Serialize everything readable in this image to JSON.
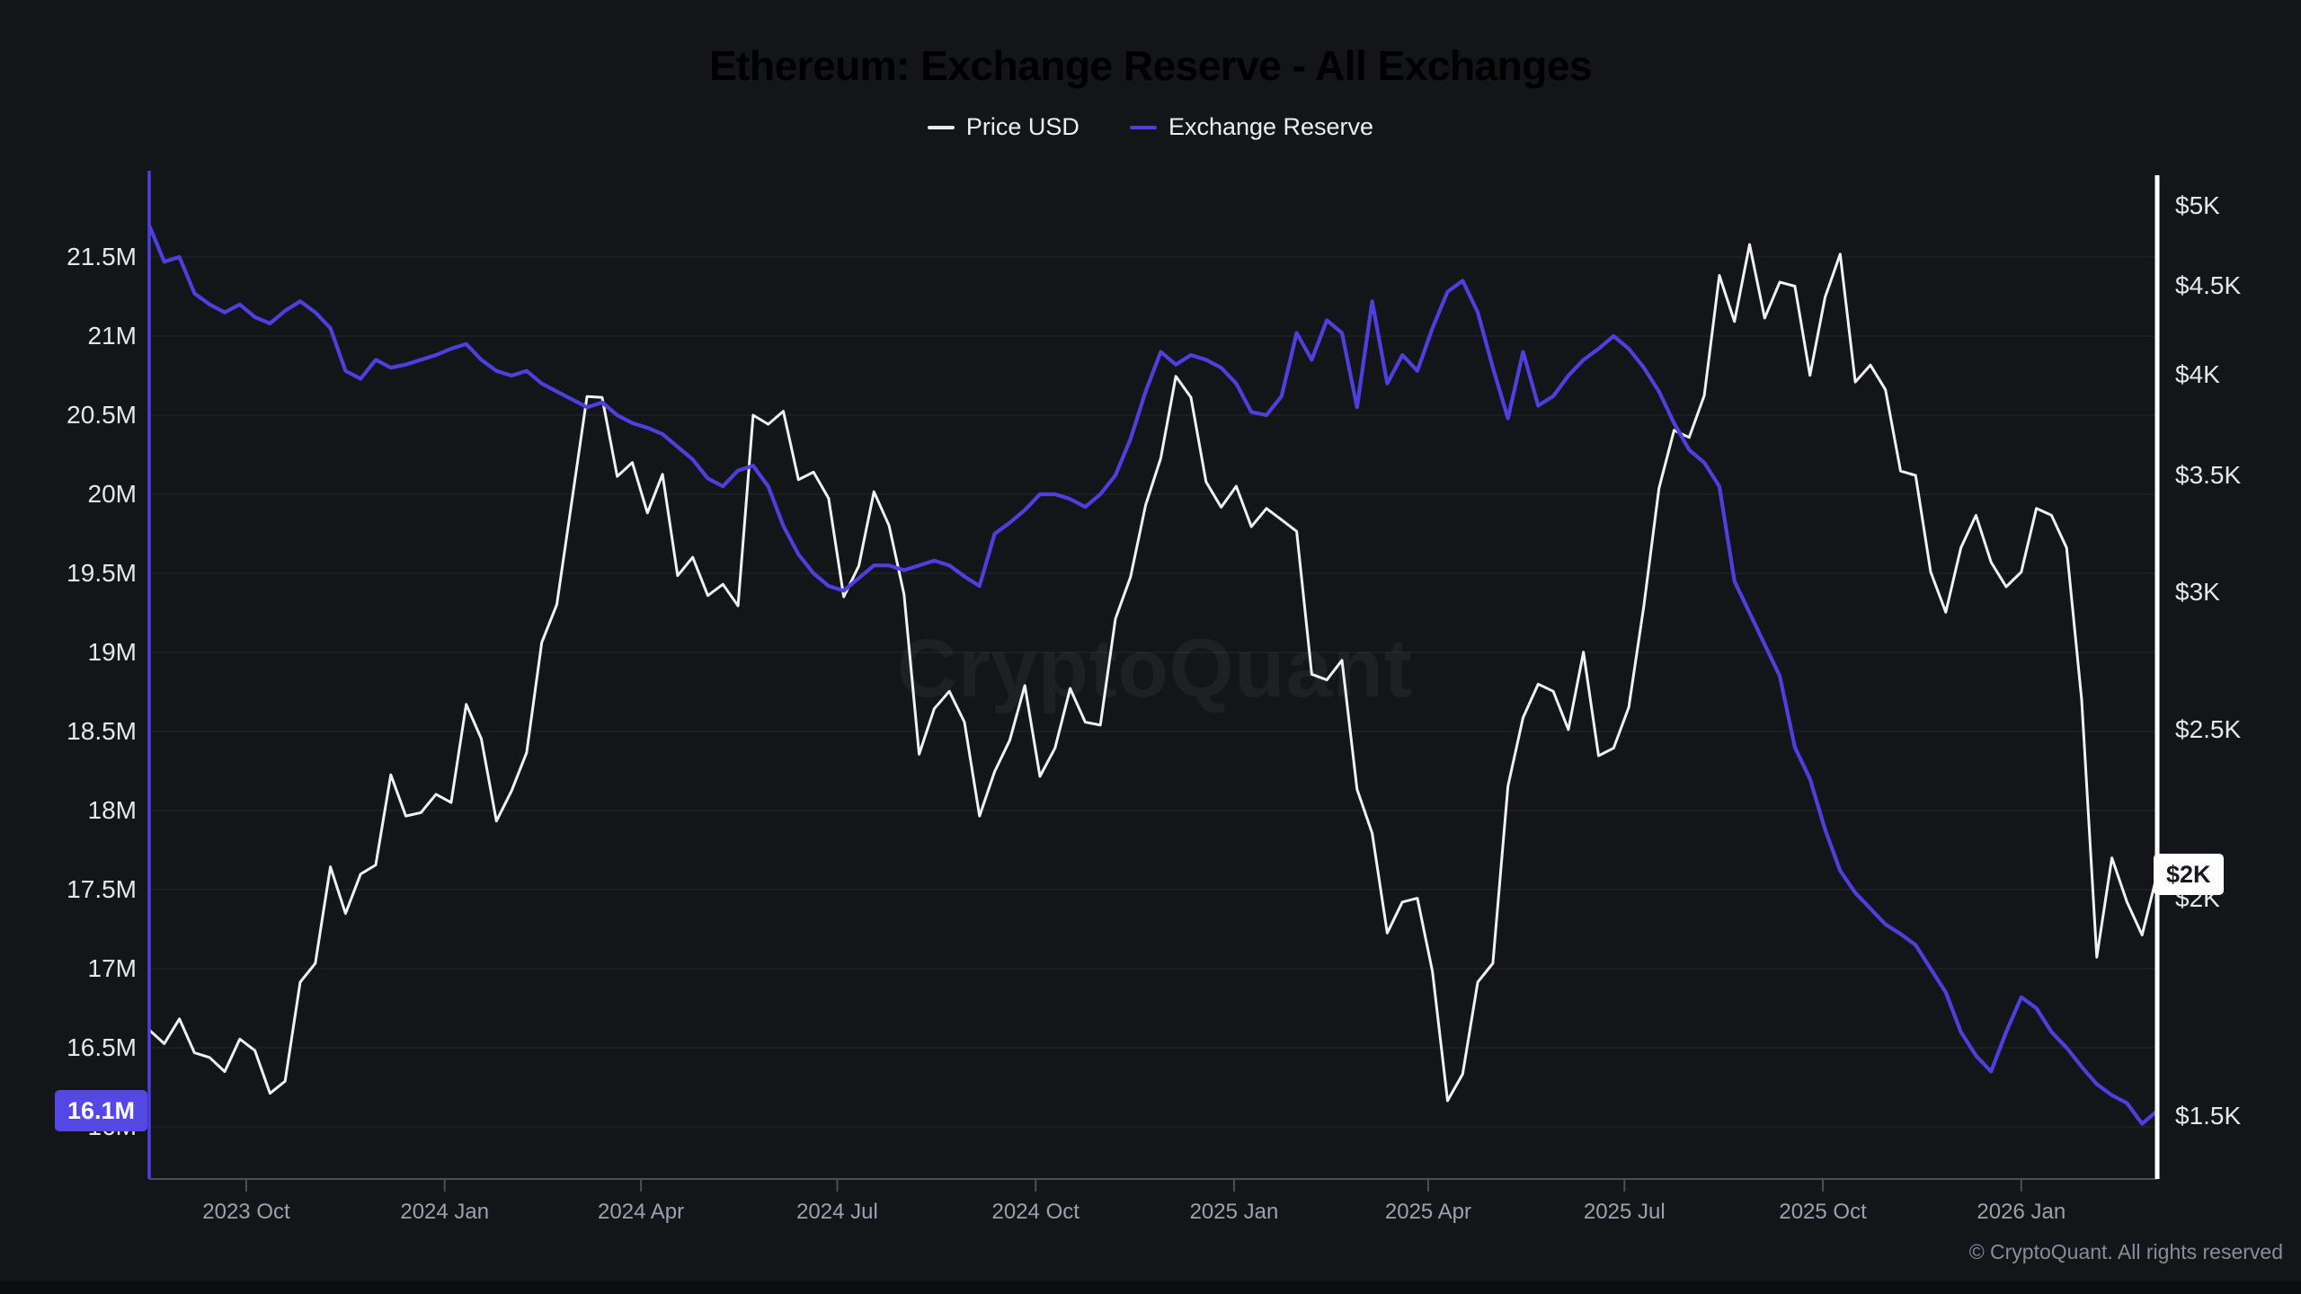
{
  "header": {
    "title": "Ethereum: Exchange Reserve - All Exchanges"
  },
  "legend": {
    "items": [
      {
        "label": "Price USD",
        "color": "#e9e9ee"
      },
      {
        "label": "Exchange Reserve",
        "color": "#4f3fe0"
      }
    ]
  },
  "badges": {
    "reserve_current": "16.1M",
    "price_current": "$2K"
  },
  "watermark": {
    "text": "CryptoQuant"
  },
  "footer": {
    "copyright": "© CryptoQuant. All rights reserved"
  },
  "colors": {
    "background": "#141519",
    "price_line": "#f2f2f5",
    "reserve_line": "#4f3fe0",
    "reserve_badge_bg": "#5348e6",
    "grid": "rgba(255,255,255,0.06)",
    "bottom_axis": "#4e4f55",
    "x_label": "#9fa0a8",
    "y_label": "#e6e6ec"
  },
  "chart_data": {
    "type": "line",
    "title": "Ethereum: Exchange Reserve - All Exchanges",
    "legend_position": "top",
    "grid": "horizontal",
    "x": [
      "2023-08-17",
      "2023-08-24",
      "2023-08-31",
      "2023-09-07",
      "2023-09-14",
      "2023-09-21",
      "2023-09-28",
      "2023-10-05",
      "2023-10-12",
      "2023-10-19",
      "2023-10-26",
      "2023-11-02",
      "2023-11-09",
      "2023-11-16",
      "2023-11-23",
      "2023-11-30",
      "2023-12-07",
      "2023-12-14",
      "2023-12-21",
      "2023-12-28",
      "2024-01-04",
      "2024-01-11",
      "2024-01-18",
      "2024-01-25",
      "2024-02-01",
      "2024-02-08",
      "2024-02-15",
      "2024-02-22",
      "2024-02-29",
      "2024-03-07",
      "2024-03-14",
      "2024-03-21",
      "2024-03-28",
      "2024-04-04",
      "2024-04-11",
      "2024-04-18",
      "2024-04-25",
      "2024-05-02",
      "2024-05-09",
      "2024-05-16",
      "2024-05-23",
      "2024-05-30",
      "2024-06-06",
      "2024-06-13",
      "2024-06-20",
      "2024-06-27",
      "2024-07-04",
      "2024-07-11",
      "2024-07-18",
      "2024-07-25",
      "2024-08-01",
      "2024-08-08",
      "2024-08-15",
      "2024-08-22",
      "2024-08-29",
      "2024-09-05",
      "2024-09-12",
      "2024-09-19",
      "2024-09-26",
      "2024-10-03",
      "2024-10-10",
      "2024-10-17",
      "2024-10-24",
      "2024-10-31",
      "2024-11-07",
      "2024-11-14",
      "2024-11-21",
      "2024-11-28",
      "2024-12-05",
      "2024-12-12",
      "2024-12-19",
      "2024-12-26",
      "2025-01-02",
      "2025-01-09",
      "2025-01-16",
      "2025-01-23",
      "2025-01-30",
      "2025-02-06",
      "2025-02-13",
      "2025-02-20",
      "2025-02-27",
      "2025-03-06",
      "2025-03-13",
      "2025-03-20",
      "2025-03-27",
      "2025-04-03",
      "2025-04-10",
      "2025-04-17",
      "2025-04-24",
      "2025-05-01",
      "2025-05-08",
      "2025-05-15",
      "2025-05-22",
      "2025-05-29",
      "2025-06-05",
      "2025-06-12",
      "2025-06-19",
      "2025-06-26",
      "2025-07-03",
      "2025-07-10",
      "2025-07-17",
      "2025-07-24",
      "2025-07-31",
      "2025-08-07",
      "2025-08-14",
      "2025-08-21",
      "2025-08-28",
      "2025-09-04",
      "2025-09-11",
      "2025-09-18",
      "2025-09-25",
      "2025-10-02",
      "2025-10-09",
      "2025-10-16",
      "2025-10-23",
      "2025-10-30",
      "2025-11-06",
      "2025-11-13",
      "2025-11-20",
      "2025-11-27",
      "2025-12-04",
      "2025-12-11",
      "2025-12-18",
      "2025-12-25",
      "2026-01-01",
      "2026-01-08",
      "2026-01-15",
      "2026-01-22",
      "2026-01-29",
      "2026-02-05",
      "2026-02-12",
      "2026-02-19",
      "2026-02-26",
      "2026-03-05"
    ],
    "series": [
      {
        "name": "Price USD",
        "axis": "right",
        "unit": "USD",
        "color": "#f2f2f5",
        "stroke_width": 3,
        "values": [
          1680,
          1650,
          1705,
          1630,
          1620,
          1590,
          1660,
          1635,
          1545,
          1570,
          1790,
          1835,
          2085,
          1960,
          2065,
          2090,
          2355,
          2230,
          2240,
          2295,
          2270,
          2585,
          2470,
          2215,
          2305,
          2425,
          2805,
          2950,
          3385,
          3885,
          3880,
          3495,
          3560,
          3330,
          3505,
          3065,
          3140,
          2985,
          3030,
          2945,
          3790,
          3745,
          3810,
          3480,
          3515,
          3395,
          2980,
          3105,
          3425,
          3275,
          2990,
          2420,
          2570,
          2630,
          2525,
          2230,
          2365,
          2465,
          2650,
          2350,
          2440,
          2640,
          2525,
          2515,
          2895,
          3060,
          3365,
          3580,
          3990,
          3880,
          3470,
          3355,
          3450,
          3270,
          3350,
          3300,
          3250,
          2690,
          2670,
          2740,
          2310,
          2180,
          1910,
          1990,
          2000,
          1815,
          1530,
          1585,
          1790,
          1835,
          2320,
          2540,
          2655,
          2630,
          2500,
          2770,
          2415,
          2440,
          2575,
          2945,
          3440,
          3715,
          3680,
          3890,
          4560,
          4290,
          4750,
          4310,
          4520,
          4495,
          3995,
          4430,
          4690,
          3960,
          4050,
          3920,
          3520,
          3500,
          3080,
          2920,
          3180,
          3320,
          3120,
          3020,
          3080,
          3350,
          3320,
          3180,
          2600,
          1850,
          2110,
          1990,
          1905,
          2065
        ]
      },
      {
        "name": "Exchange Reserve",
        "axis": "left",
        "unit": "ETH (millions)",
        "color": "#4f3fe0",
        "stroke_width": 4.2,
        "values": [
          21.7,
          21.47,
          21.5,
          21.27,
          21.2,
          21.15,
          21.2,
          21.12,
          21.08,
          21.16,
          21.22,
          21.15,
          21.05,
          20.78,
          20.73,
          20.85,
          20.8,
          20.82,
          20.85,
          20.88,
          20.92,
          20.95,
          20.85,
          20.78,
          20.75,
          20.78,
          20.7,
          20.65,
          20.6,
          20.55,
          20.58,
          20.5,
          20.45,
          20.42,
          20.38,
          20.3,
          20.22,
          20.1,
          20.05,
          20.15,
          20.18,
          20.05,
          19.8,
          19.62,
          19.5,
          19.42,
          19.39,
          19.47,
          19.55,
          19.55,
          19.52,
          19.55,
          19.58,
          19.55,
          19.48,
          19.42,
          19.75,
          19.82,
          19.9,
          20.0,
          20.0,
          19.97,
          19.92,
          20.0,
          20.12,
          20.35,
          20.65,
          20.9,
          20.82,
          20.88,
          20.85,
          20.8,
          20.7,
          20.52,
          20.5,
          20.62,
          21.02,
          20.85,
          21.1,
          21.02,
          20.55,
          21.22,
          20.7,
          20.88,
          20.78,
          21.05,
          21.28,
          21.35,
          21.15,
          20.8,
          20.48,
          20.9,
          20.56,
          20.62,
          20.75,
          20.85,
          20.92,
          21.0,
          20.92,
          20.8,
          20.65,
          20.45,
          20.28,
          20.2,
          20.05,
          19.45,
          19.25,
          19.05,
          18.85,
          18.4,
          18.2,
          17.88,
          17.62,
          17.48,
          17.38,
          17.28,
          17.22,
          17.15,
          17.0,
          16.85,
          16.6,
          16.45,
          16.35,
          16.6,
          16.82,
          16.75,
          16.6,
          16.5,
          16.38,
          16.27,
          16.2,
          16.15,
          16.02,
          16.1
        ]
      }
    ],
    "axes": {
      "left": {
        "title": "Exchange Reserve",
        "scale": "linear",
        "tick_labels": [
          "21.5M",
          "21M",
          "20.5M",
          "20M",
          "19.5M",
          "19M",
          "18.5M",
          "18M",
          "17.5M",
          "17M",
          "16.5M",
          "16M"
        ],
        "tick_values": [
          21.5,
          21.0,
          20.5,
          20.0,
          19.5,
          19.0,
          18.5,
          18.0,
          17.5,
          17.0,
          16.5,
          16.0
        ],
        "current_label": "16.1M",
        "current_value": 16.1
      },
      "right": {
        "title": "Price USD",
        "scale": "log",
        "tick_labels": [
          "$5K",
          "$4.5K",
          "$4K",
          "$3.5K",
          "$3K",
          "$2.5K",
          "$2K",
          "$1.5K"
        ],
        "tick_values": [
          5000,
          4500,
          4000,
          3500,
          3000,
          2500,
          2000,
          1500
        ],
        "current_label": "$2K",
        "current_value": 2065
      },
      "x": {
        "tick_labels": [
          "2023 Oct",
          "2024 Jan",
          "2024 Apr",
          "2024 Jul",
          "2024 Oct",
          "2025 Jan",
          "2025 Apr",
          "2025 Jul",
          "2025 Oct",
          "2026 Jan"
        ],
        "tick_dates": [
          "2023-10-01",
          "2024-01-01",
          "2024-04-01",
          "2024-07-01",
          "2024-10-01",
          "2025-01-01",
          "2025-04-01",
          "2025-07-01",
          "2025-10-01",
          "2026-01-01"
        ]
      }
    }
  }
}
